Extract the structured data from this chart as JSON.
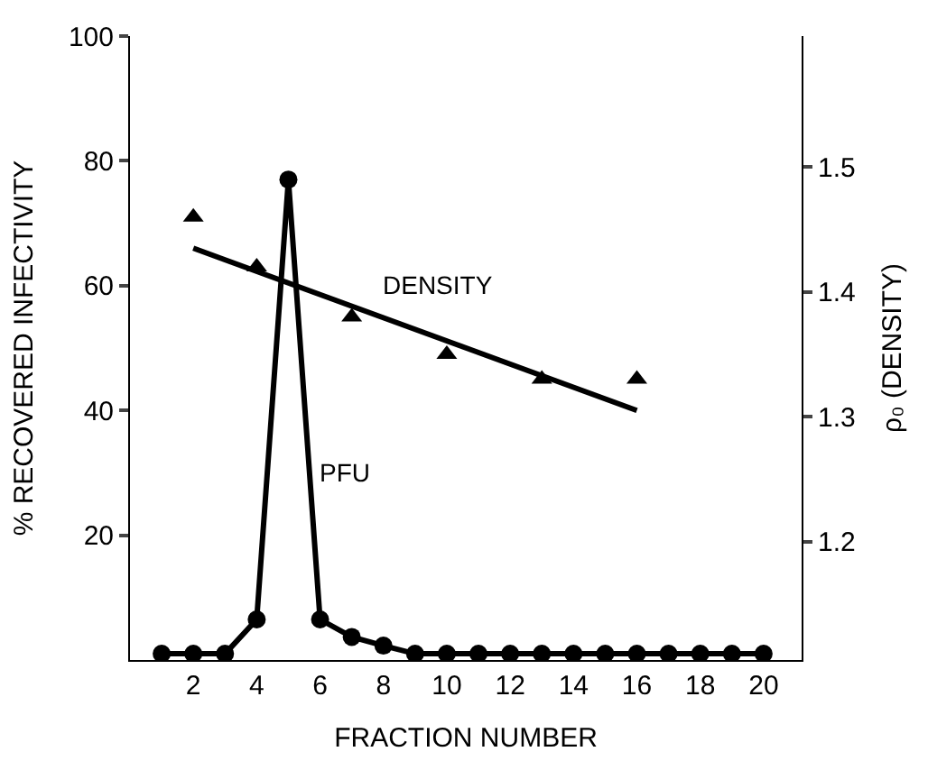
{
  "chart_data": {
    "type": "line",
    "xlabel": "FRACTION NUMBER",
    "ylabel": "% RECOVERED INFECTIVITY",
    "y2label": "ρ₀ (DENSITY)",
    "xlim": [
      0,
      21.2
    ],
    "xticks": [
      2,
      4,
      6,
      8,
      10,
      12,
      14,
      16,
      18,
      20
    ],
    "ylim": [
      0,
      100
    ],
    "yticks": [
      20,
      40,
      60,
      80,
      100
    ],
    "y2lim": [
      1.105,
      1.605
    ],
    "y2ticks": [
      1.2,
      1.3,
      1.4,
      1.5
    ],
    "legend": false,
    "series": [
      {
        "name": "PFU",
        "type": "line",
        "color": "#000000",
        "marker": "circle",
        "x": [
          1,
          2,
          3,
          4,
          5,
          6,
          7,
          8,
          9,
          10,
          11,
          12,
          13,
          14,
          15,
          16,
          17,
          18,
          19,
          20
        ],
        "values": [
          1,
          1,
          1,
          6.5,
          77,
          6.5,
          3.7,
          2.3,
          1,
          1,
          1,
          1,
          1,
          1,
          1,
          1,
          1,
          1,
          1,
          1
        ]
      },
      {
        "name": "DENSITY",
        "type": "scatter",
        "axis": "y2",
        "color": "#000000",
        "marker": "triangle",
        "x": [
          2,
          4,
          7,
          10,
          13,
          16
        ],
        "values": [
          1.46,
          1.42,
          1.38,
          1.35,
          1.33,
          1.33
        ]
      },
      {
        "axis": "y2",
        "color": "#000000",
        "marker": "none",
        "x": [
          2,
          16
        ],
        "values": [
          1.435,
          1.305
        ]
      }
    ]
  }
}
